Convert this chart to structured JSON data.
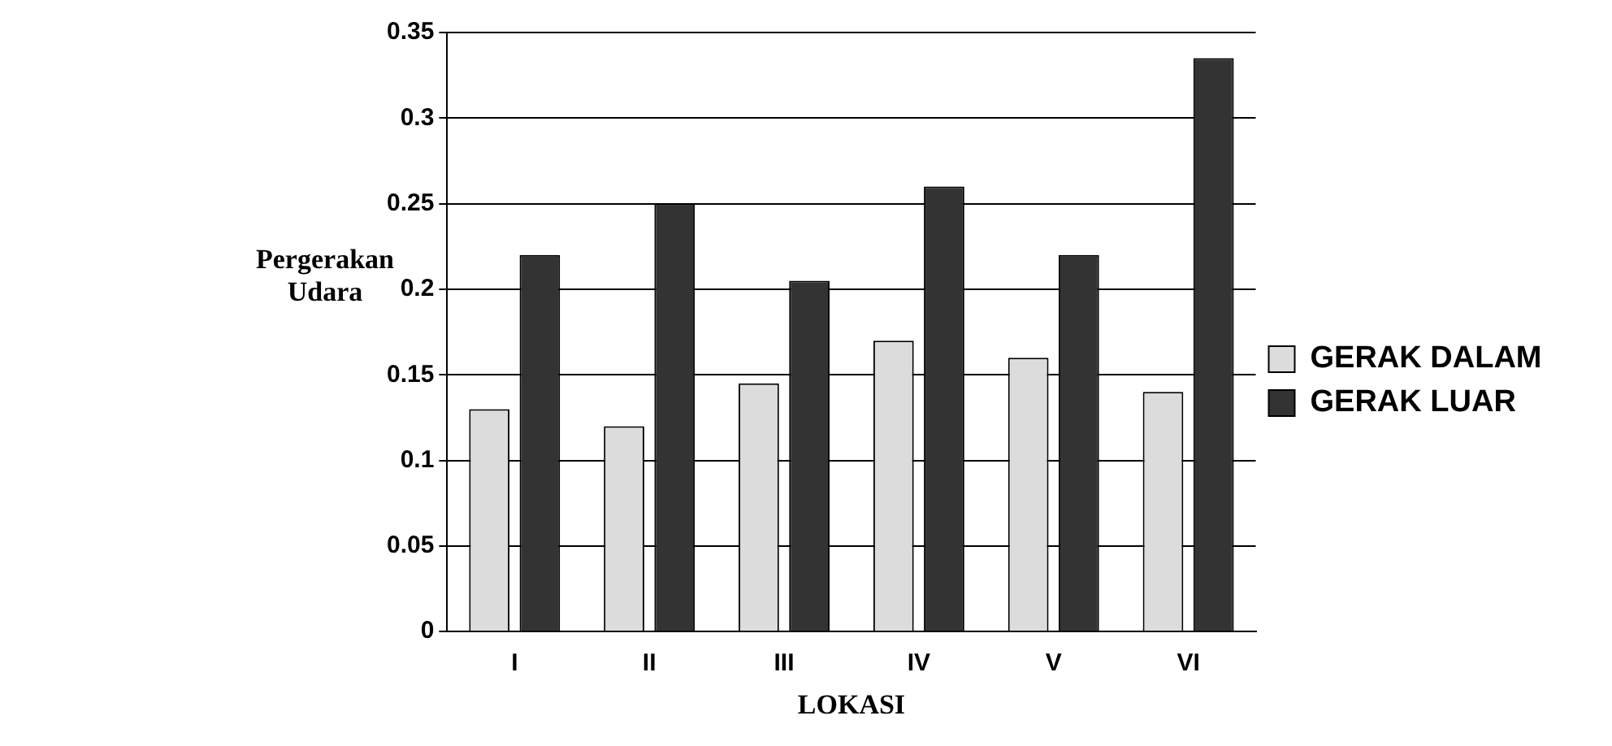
{
  "chart_data": {
    "type": "bar",
    "xlabel": "LOKASI",
    "ylabel": "Pergerakan Udara",
    "categories": [
      "I",
      "II",
      "III",
      "IV",
      "V",
      "VI"
    ],
    "series": [
      {
        "name": "GERAK DALAM",
        "color": "#dcdcdc",
        "values": [
          0.13,
          0.12,
          0.145,
          0.17,
          0.16,
          0.14
        ]
      },
      {
        "name": "GERAK LUAR",
        "color": "#333333",
        "values": [
          0.22,
          0.25,
          0.205,
          0.26,
          0.22,
          0.335
        ]
      }
    ],
    "ylim": [
      0,
      0.35
    ],
    "yticks": [
      0,
      0.05,
      0.1,
      0.15,
      0.2,
      0.25,
      0.3,
      0.35
    ],
    "grid": "y",
    "legend": "right"
  }
}
